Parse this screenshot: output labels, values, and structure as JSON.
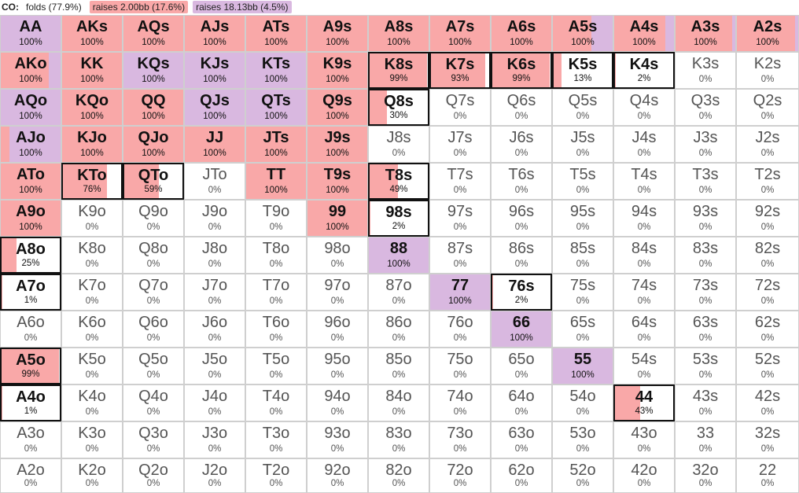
{
  "legend": {
    "position": "CO:",
    "fold": "folds (77.9%)",
    "raise_small": "raises 2.00bb (17.6%)",
    "raise_big": "raises 18.13bb (4.5%)"
  },
  "colors": {
    "raise_small": "#f9a8a8",
    "raise_big": "#d9b8e0"
  },
  "grid": {
    "rows": [
      [
        {
          "hand": "AA",
          "pct": "100%",
          "r": 0,
          "b": 1
        },
        {
          "hand": "AKs",
          "pct": "100%",
          "r": 1,
          "b": 0
        },
        {
          "hand": "AQs",
          "pct": "100%",
          "r": 1,
          "b": 0
        },
        {
          "hand": "AJs",
          "pct": "100%",
          "r": 1,
          "b": 0
        },
        {
          "hand": "ATs",
          "pct": "100%",
          "r": 1,
          "b": 0
        },
        {
          "hand": "A9s",
          "pct": "100%",
          "r": 1,
          "b": 0
        },
        {
          "hand": "A8s",
          "pct": "100%",
          "r": 1,
          "b": 0
        },
        {
          "hand": "A7s",
          "pct": "100%",
          "r": 1,
          "b": 0
        },
        {
          "hand": "A6s",
          "pct": "100%",
          "r": 1,
          "b": 0
        },
        {
          "hand": "A5s",
          "pct": "100%",
          "r": 0.65,
          "b": 0.35
        },
        {
          "hand": "A4s",
          "pct": "100%",
          "r": 0.85,
          "b": 0.15
        },
        {
          "hand": "A3s",
          "pct": "100%",
          "r": 0.95,
          "b": 0.05
        },
        {
          "hand": "A2s",
          "pct": "100%",
          "r": 0.95,
          "b": 0.05
        }
      ],
      [
        {
          "hand": "AKo",
          "pct": "100%",
          "r": 0.8,
          "b": 0.2
        },
        {
          "hand": "KK",
          "pct": "100%",
          "r": 1,
          "b": 0
        },
        {
          "hand": "KQs",
          "pct": "100%",
          "r": 0,
          "b": 1
        },
        {
          "hand": "KJs",
          "pct": "100%",
          "r": 0,
          "b": 1
        },
        {
          "hand": "KTs",
          "pct": "100%",
          "r": 0,
          "b": 1
        },
        {
          "hand": "K9s",
          "pct": "100%",
          "r": 1,
          "b": 0
        },
        {
          "hand": "K8s",
          "pct": "99%",
          "r": 0.99,
          "b": 0
        },
        {
          "hand": "K7s",
          "pct": "93%",
          "r": 0.93,
          "b": 0
        },
        {
          "hand": "K6s",
          "pct": "99%",
          "r": 0.99,
          "b": 0
        },
        {
          "hand": "K5s",
          "pct": "13%",
          "r": 0.13,
          "b": 0
        },
        {
          "hand": "K4s",
          "pct": "2%",
          "r": 0.02,
          "b": 0
        },
        {
          "hand": "K3s",
          "pct": "0%",
          "r": 0,
          "b": 0
        },
        {
          "hand": "K2s",
          "pct": "0%",
          "r": 0,
          "b": 0
        }
      ],
      [
        {
          "hand": "AQo",
          "pct": "100%",
          "r": 0,
          "b": 1
        },
        {
          "hand": "KQo",
          "pct": "100%",
          "r": 1,
          "b": 0
        },
        {
          "hand": "QQ",
          "pct": "100%",
          "r": 1,
          "b": 0
        },
        {
          "hand": "QJs",
          "pct": "100%",
          "r": 0,
          "b": 1
        },
        {
          "hand": "QTs",
          "pct": "100%",
          "r": 0,
          "b": 1
        },
        {
          "hand": "Q9s",
          "pct": "100%",
          "r": 1,
          "b": 0
        },
        {
          "hand": "Q8s",
          "pct": "30%",
          "r": 0.3,
          "b": 0
        },
        {
          "hand": "Q7s",
          "pct": "0%",
          "r": 0,
          "b": 0
        },
        {
          "hand": "Q6s",
          "pct": "0%",
          "r": 0,
          "b": 0
        },
        {
          "hand": "Q5s",
          "pct": "0%",
          "r": 0,
          "b": 0
        },
        {
          "hand": "Q4s",
          "pct": "0%",
          "r": 0,
          "b": 0
        },
        {
          "hand": "Q3s",
          "pct": "0%",
          "r": 0,
          "b": 0
        },
        {
          "hand": "Q2s",
          "pct": "0%",
          "r": 0,
          "b": 0
        }
      ],
      [
        {
          "hand": "AJo",
          "pct": "100%",
          "r": 0.15,
          "b": 0.85
        },
        {
          "hand": "KJo",
          "pct": "100%",
          "r": 1,
          "b": 0
        },
        {
          "hand": "QJo",
          "pct": "100%",
          "r": 1,
          "b": 0
        },
        {
          "hand": "JJ",
          "pct": "100%",
          "r": 1,
          "b": 0
        },
        {
          "hand": "JTs",
          "pct": "100%",
          "r": 1,
          "b": 0
        },
        {
          "hand": "J9s",
          "pct": "100%",
          "r": 1,
          "b": 0
        },
        {
          "hand": "J8s",
          "pct": "0%",
          "r": 0,
          "b": 0
        },
        {
          "hand": "J7s",
          "pct": "0%",
          "r": 0,
          "b": 0
        },
        {
          "hand": "J6s",
          "pct": "0%",
          "r": 0,
          "b": 0
        },
        {
          "hand": "J5s",
          "pct": "0%",
          "r": 0,
          "b": 0
        },
        {
          "hand": "J4s",
          "pct": "0%",
          "r": 0,
          "b": 0
        },
        {
          "hand": "J3s",
          "pct": "0%",
          "r": 0,
          "b": 0
        },
        {
          "hand": "J2s",
          "pct": "0%",
          "r": 0,
          "b": 0
        }
      ],
      [
        {
          "hand": "ATo",
          "pct": "100%",
          "r": 1,
          "b": 0
        },
        {
          "hand": "KTo",
          "pct": "76%",
          "r": 0.76,
          "b": 0
        },
        {
          "hand": "QTo",
          "pct": "59%",
          "r": 0.59,
          "b": 0
        },
        {
          "hand": "JTo",
          "pct": "0%",
          "r": 0,
          "b": 0
        },
        {
          "hand": "TT",
          "pct": "100%",
          "r": 1,
          "b": 0
        },
        {
          "hand": "T9s",
          "pct": "100%",
          "r": 1,
          "b": 0
        },
        {
          "hand": "T8s",
          "pct": "49%",
          "r": 0.49,
          "b": 0
        },
        {
          "hand": "T7s",
          "pct": "0%",
          "r": 0,
          "b": 0
        },
        {
          "hand": "T6s",
          "pct": "0%",
          "r": 0,
          "b": 0
        },
        {
          "hand": "T5s",
          "pct": "0%",
          "r": 0,
          "b": 0
        },
        {
          "hand": "T4s",
          "pct": "0%",
          "r": 0,
          "b": 0
        },
        {
          "hand": "T3s",
          "pct": "0%",
          "r": 0,
          "b": 0
        },
        {
          "hand": "T2s",
          "pct": "0%",
          "r": 0,
          "b": 0
        }
      ],
      [
        {
          "hand": "A9o",
          "pct": "100%",
          "r": 1,
          "b": 0
        },
        {
          "hand": "K9o",
          "pct": "0%",
          "r": 0,
          "b": 0
        },
        {
          "hand": "Q9o",
          "pct": "0%",
          "r": 0,
          "b": 0
        },
        {
          "hand": "J9o",
          "pct": "0%",
          "r": 0,
          "b": 0
        },
        {
          "hand": "T9o",
          "pct": "0%",
          "r": 0,
          "b": 0
        },
        {
          "hand": "99",
          "pct": "100%",
          "r": 1,
          "b": 0
        },
        {
          "hand": "98s",
          "pct": "2%",
          "r": 0.02,
          "b": 0
        },
        {
          "hand": "97s",
          "pct": "0%",
          "r": 0,
          "b": 0
        },
        {
          "hand": "96s",
          "pct": "0%",
          "r": 0,
          "b": 0
        },
        {
          "hand": "95s",
          "pct": "0%",
          "r": 0,
          "b": 0
        },
        {
          "hand": "94s",
          "pct": "0%",
          "r": 0,
          "b": 0
        },
        {
          "hand": "93s",
          "pct": "0%",
          "r": 0,
          "b": 0
        },
        {
          "hand": "92s",
          "pct": "0%",
          "r": 0,
          "b": 0
        }
      ],
      [
        {
          "hand": "A8o",
          "pct": "25%",
          "r": 0.25,
          "b": 0
        },
        {
          "hand": "K8o",
          "pct": "0%",
          "r": 0,
          "b": 0
        },
        {
          "hand": "Q8o",
          "pct": "0%",
          "r": 0,
          "b": 0
        },
        {
          "hand": "J8o",
          "pct": "0%",
          "r": 0,
          "b": 0
        },
        {
          "hand": "T8o",
          "pct": "0%",
          "r": 0,
          "b": 0
        },
        {
          "hand": "98o",
          "pct": "0%",
          "r": 0,
          "b": 0
        },
        {
          "hand": "88",
          "pct": "100%",
          "r": 0,
          "b": 1
        },
        {
          "hand": "87s",
          "pct": "0%",
          "r": 0,
          "b": 0
        },
        {
          "hand": "86s",
          "pct": "0%",
          "r": 0,
          "b": 0
        },
        {
          "hand": "85s",
          "pct": "0%",
          "r": 0,
          "b": 0
        },
        {
          "hand": "84s",
          "pct": "0%",
          "r": 0,
          "b": 0
        },
        {
          "hand": "83s",
          "pct": "0%",
          "r": 0,
          "b": 0
        },
        {
          "hand": "82s",
          "pct": "0%",
          "r": 0,
          "b": 0
        }
      ],
      [
        {
          "hand": "A7o",
          "pct": "1%",
          "r": 0.01,
          "b": 0
        },
        {
          "hand": "K7o",
          "pct": "0%",
          "r": 0,
          "b": 0
        },
        {
          "hand": "Q7o",
          "pct": "0%",
          "r": 0,
          "b": 0
        },
        {
          "hand": "J7o",
          "pct": "0%",
          "r": 0,
          "b": 0
        },
        {
          "hand": "T7o",
          "pct": "0%",
          "r": 0,
          "b": 0
        },
        {
          "hand": "97o",
          "pct": "0%",
          "r": 0,
          "b": 0
        },
        {
          "hand": "87o",
          "pct": "0%",
          "r": 0,
          "b": 0
        },
        {
          "hand": "77",
          "pct": "100%",
          "r": 0,
          "b": 1
        },
        {
          "hand": "76s",
          "pct": "2%",
          "r": 0.02,
          "b": 0
        },
        {
          "hand": "75s",
          "pct": "0%",
          "r": 0,
          "b": 0
        },
        {
          "hand": "74s",
          "pct": "0%",
          "r": 0,
          "b": 0
        },
        {
          "hand": "73s",
          "pct": "0%",
          "r": 0,
          "b": 0
        },
        {
          "hand": "72s",
          "pct": "0%",
          "r": 0,
          "b": 0
        }
      ],
      [
        {
          "hand": "A6o",
          "pct": "0%",
          "r": 0,
          "b": 0
        },
        {
          "hand": "K6o",
          "pct": "0%",
          "r": 0,
          "b": 0
        },
        {
          "hand": "Q6o",
          "pct": "0%",
          "r": 0,
          "b": 0
        },
        {
          "hand": "J6o",
          "pct": "0%",
          "r": 0,
          "b": 0
        },
        {
          "hand": "T6o",
          "pct": "0%",
          "r": 0,
          "b": 0
        },
        {
          "hand": "96o",
          "pct": "0%",
          "r": 0,
          "b": 0
        },
        {
          "hand": "86o",
          "pct": "0%",
          "r": 0,
          "b": 0
        },
        {
          "hand": "76o",
          "pct": "0%",
          "r": 0,
          "b": 0
        },
        {
          "hand": "66",
          "pct": "100%",
          "r": 0,
          "b": 1
        },
        {
          "hand": "65s",
          "pct": "0%",
          "r": 0,
          "b": 0
        },
        {
          "hand": "64s",
          "pct": "0%",
          "r": 0,
          "b": 0
        },
        {
          "hand": "63s",
          "pct": "0%",
          "r": 0,
          "b": 0
        },
        {
          "hand": "62s",
          "pct": "0%",
          "r": 0,
          "b": 0
        }
      ],
      [
        {
          "hand": "A5o",
          "pct": "99%",
          "r": 0.99,
          "b": 0
        },
        {
          "hand": "K5o",
          "pct": "0%",
          "r": 0,
          "b": 0
        },
        {
          "hand": "Q5o",
          "pct": "0%",
          "r": 0,
          "b": 0
        },
        {
          "hand": "J5o",
          "pct": "0%",
          "r": 0,
          "b": 0
        },
        {
          "hand": "T5o",
          "pct": "0%",
          "r": 0,
          "b": 0
        },
        {
          "hand": "95o",
          "pct": "0%",
          "r": 0,
          "b": 0
        },
        {
          "hand": "85o",
          "pct": "0%",
          "r": 0,
          "b": 0
        },
        {
          "hand": "75o",
          "pct": "0%",
          "r": 0,
          "b": 0
        },
        {
          "hand": "65o",
          "pct": "0%",
          "r": 0,
          "b": 0
        },
        {
          "hand": "55",
          "pct": "100%",
          "r": 0,
          "b": 1
        },
        {
          "hand": "54s",
          "pct": "0%",
          "r": 0,
          "b": 0
        },
        {
          "hand": "53s",
          "pct": "0%",
          "r": 0,
          "b": 0
        },
        {
          "hand": "52s",
          "pct": "0%",
          "r": 0,
          "b": 0
        }
      ],
      [
        {
          "hand": "A4o",
          "pct": "1%",
          "r": 0.01,
          "b": 0
        },
        {
          "hand": "K4o",
          "pct": "0%",
          "r": 0,
          "b": 0
        },
        {
          "hand": "Q4o",
          "pct": "0%",
          "r": 0,
          "b": 0
        },
        {
          "hand": "J4o",
          "pct": "0%",
          "r": 0,
          "b": 0
        },
        {
          "hand": "T4o",
          "pct": "0%",
          "r": 0,
          "b": 0
        },
        {
          "hand": "94o",
          "pct": "0%",
          "r": 0,
          "b": 0
        },
        {
          "hand": "84o",
          "pct": "0%",
          "r": 0,
          "b": 0
        },
        {
          "hand": "74o",
          "pct": "0%",
          "r": 0,
          "b": 0
        },
        {
          "hand": "64o",
          "pct": "0%",
          "r": 0,
          "b": 0
        },
        {
          "hand": "54o",
          "pct": "0%",
          "r": 0,
          "b": 0
        },
        {
          "hand": "44",
          "pct": "43%",
          "r": 0.43,
          "b": 0
        },
        {
          "hand": "43s",
          "pct": "0%",
          "r": 0,
          "b": 0
        },
        {
          "hand": "42s",
          "pct": "0%",
          "r": 0,
          "b": 0
        }
      ],
      [
        {
          "hand": "A3o",
          "pct": "0%",
          "r": 0,
          "b": 0
        },
        {
          "hand": "K3o",
          "pct": "0%",
          "r": 0,
          "b": 0
        },
        {
          "hand": "Q3o",
          "pct": "0%",
          "r": 0,
          "b": 0
        },
        {
          "hand": "J3o",
          "pct": "0%",
          "r": 0,
          "b": 0
        },
        {
          "hand": "T3o",
          "pct": "0%",
          "r": 0,
          "b": 0
        },
        {
          "hand": "93o",
          "pct": "0%",
          "r": 0,
          "b": 0
        },
        {
          "hand": "83o",
          "pct": "0%",
          "r": 0,
          "b": 0
        },
        {
          "hand": "73o",
          "pct": "0%",
          "r": 0,
          "b": 0
        },
        {
          "hand": "63o",
          "pct": "0%",
          "r": 0,
          "b": 0
        },
        {
          "hand": "53o",
          "pct": "0%",
          "r": 0,
          "b": 0
        },
        {
          "hand": "43o",
          "pct": "0%",
          "r": 0,
          "b": 0
        },
        {
          "hand": "33",
          "pct": "0%",
          "r": 0,
          "b": 0
        },
        {
          "hand": "32s",
          "pct": "0%",
          "r": 0,
          "b": 0
        }
      ],
      [
        {
          "hand": "A2o",
          "pct": "0%",
          "r": 0,
          "b": 0
        },
        {
          "hand": "K2o",
          "pct": "0%",
          "r": 0,
          "b": 0
        },
        {
          "hand": "Q2o",
          "pct": "0%",
          "r": 0,
          "b": 0
        },
        {
          "hand": "J2o",
          "pct": "0%",
          "r": 0,
          "b": 0
        },
        {
          "hand": "T2o",
          "pct": "0%",
          "r": 0,
          "b": 0
        },
        {
          "hand": "92o",
          "pct": "0%",
          "r": 0,
          "b": 0
        },
        {
          "hand": "82o",
          "pct": "0%",
          "r": 0,
          "b": 0
        },
        {
          "hand": "72o",
          "pct": "0%",
          "r": 0,
          "b": 0
        },
        {
          "hand": "62o",
          "pct": "0%",
          "r": 0,
          "b": 0
        },
        {
          "hand": "52o",
          "pct": "0%",
          "r": 0,
          "b": 0
        },
        {
          "hand": "42o",
          "pct": "0%",
          "r": 0,
          "b": 0
        },
        {
          "hand": "32o",
          "pct": "0%",
          "r": 0,
          "b": 0
        },
        {
          "hand": "22",
          "pct": "0%",
          "r": 0,
          "b": 0
        }
      ]
    ]
  }
}
